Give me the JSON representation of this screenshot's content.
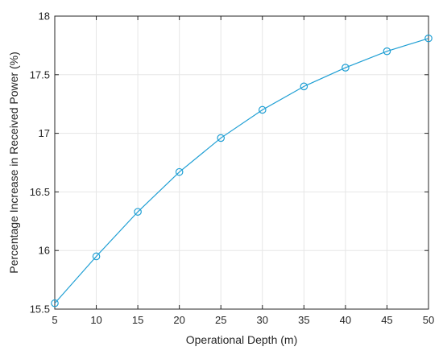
{
  "chart_data": {
    "type": "line",
    "title": "",
    "xlabel": "Operational Depth (m)",
    "ylabel": "Percentage Increase in Received Power (%)",
    "xlim": [
      5,
      50
    ],
    "ylim": [
      15.5,
      18
    ],
    "x_ticks": [
      5,
      10,
      15,
      20,
      25,
      30,
      35,
      40,
      45,
      50
    ],
    "x_tick_labels": [
      "5",
      "10",
      "15",
      "20",
      "25",
      "30",
      "35",
      "40",
      "45",
      "50"
    ],
    "y_ticks": [
      15.5,
      16,
      16.5,
      17,
      17.5,
      18
    ],
    "y_tick_labels": [
      "15.5",
      "16",
      "16.5",
      "17",
      "17.5",
      "18"
    ],
    "grid": true,
    "series": [
      {
        "marker": "circle",
        "color": "#1f9fd4",
        "x": [
          5,
          10,
          15,
          20,
          25,
          30,
          35,
          40,
          45,
          50
        ],
        "y": [
          15.55,
          15.95,
          16.33,
          16.67,
          16.96,
          17.2,
          17.4,
          17.56,
          17.7,
          17.81
        ]
      }
    ]
  }
}
